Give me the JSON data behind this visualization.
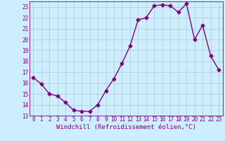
{
  "x": [
    0,
    1,
    2,
    3,
    4,
    5,
    6,
    7,
    8,
    9,
    10,
    11,
    12,
    13,
    14,
    15,
    16,
    17,
    18,
    19,
    20,
    21,
    22,
    23
  ],
  "y": [
    16.5,
    15.9,
    15.0,
    14.8,
    14.2,
    13.5,
    13.4,
    13.4,
    14.0,
    15.3,
    16.4,
    17.8,
    19.4,
    21.8,
    22.0,
    23.1,
    23.2,
    23.1,
    22.5,
    23.3,
    20.0,
    21.3,
    18.5,
    17.2
  ],
  "line_color": "#800080",
  "marker": "D",
  "markersize": 2.5,
  "bg_color": "#cceeff",
  "grid_color": "#aacccc",
  "xlabel": "Windchill (Refroidissement éolien,°C)",
  "ylim": [
    13,
    23.5
  ],
  "xlim": [
    -0.5,
    23.5
  ],
  "yticks": [
    13,
    14,
    15,
    16,
    17,
    18,
    19,
    20,
    21,
    22,
    23
  ],
  "xticks": [
    0,
    1,
    2,
    3,
    4,
    5,
    6,
    7,
    8,
    9,
    10,
    11,
    12,
    13,
    14,
    15,
    16,
    17,
    18,
    19,
    20,
    21,
    22,
    23
  ],
  "tick_color": "#800080",
  "tick_fontsize": 5.5,
  "xlabel_fontsize": 6.5,
  "linewidth": 1.0
}
